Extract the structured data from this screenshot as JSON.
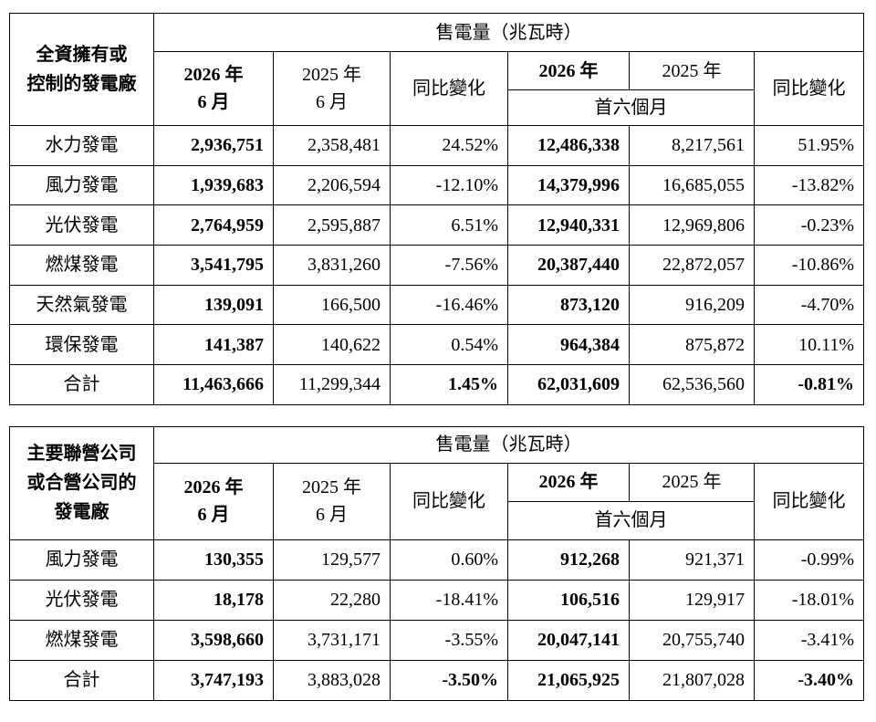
{
  "tables": [
    {
      "corner": [
        "全資擁有或",
        "控制的發電廠"
      ],
      "group_header": "售電量（兆瓦時）",
      "col_headers": [
        [
          "2026 年",
          "6 月"
        ],
        [
          "2025 年",
          "6 月"
        ],
        [
          "同比變化"
        ],
        [
          "2026 年"
        ],
        [
          "2025 年"
        ],
        [
          "同比變化"
        ]
      ],
      "period_header": "首六個月",
      "rows": [
        [
          "水力發電",
          "2,936,751",
          "2,358,481",
          "24.52%",
          "12,486,338",
          "8,217,561",
          "51.95%"
        ],
        [
          "風力發電",
          "1,939,683",
          "2,206,594",
          "-12.10%",
          "14,379,996",
          "16,685,055",
          "-13.82%"
        ],
        [
          "光伏發電",
          "2,764,959",
          "2,595,887",
          "6.51%",
          "12,940,331",
          "12,969,806",
          "-0.23%"
        ],
        [
          "燃煤發電",
          "3,541,795",
          "3,831,260",
          "-7.56%",
          "20,387,440",
          "22,872,057",
          "-10.86%"
        ],
        [
          "天然氣發電",
          "139,091",
          "166,500",
          "-16.46%",
          "873,120",
          "916,209",
          "-4.70%"
        ],
        [
          "環保發電",
          "141,387",
          "140,622",
          "0.54%",
          "964,384",
          "875,872",
          "10.11%"
        ],
        [
          "合計",
          "11,463,666",
          "11,299,344",
          "1.45%",
          "62,031,609",
          "62,536,560",
          "-0.81%"
        ]
      ]
    },
    {
      "corner": [
        "主要聯營公司",
        "或合營公司的",
        "發電廠"
      ],
      "group_header": "售電量（兆瓦時）",
      "col_headers": [
        [
          "2026 年",
          "6 月"
        ],
        [
          "2025 年",
          "6 月"
        ],
        [
          "同比變化"
        ],
        [
          "2026 年"
        ],
        [
          "2025 年"
        ],
        [
          "同比變化"
        ]
      ],
      "period_header": "首六個月",
      "rows": [
        [
          "風力發電",
          "130,355",
          "129,577",
          "0.60%",
          "912,268",
          "921,371",
          "-0.99%"
        ],
        [
          "光伏發電",
          "18,178",
          "22,280",
          "-18.41%",
          "106,516",
          "129,917",
          "-18.01%"
        ],
        [
          "燃煤發電",
          "3,598,660",
          "3,731,171",
          "-3.55%",
          "20,047,141",
          "20,755,740",
          "-3.41%"
        ],
        [
          "合計",
          "3,747,193",
          "3,883,028",
          "-3.50%",
          "21,065,925",
          "21,807,028",
          "-3.40%"
        ]
      ]
    }
  ]
}
